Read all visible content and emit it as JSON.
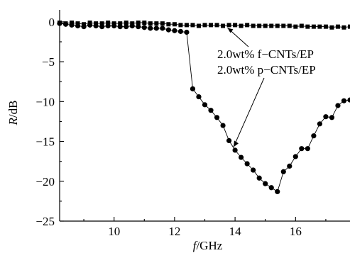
{
  "chart_data": {
    "type": "line",
    "xlabel": {
      "var": "f",
      "unit": "/GHz"
    },
    "ylabel": {
      "var": "R",
      "unit": "/dB"
    },
    "xlim": [
      8.2,
      17.8
    ],
    "ylim": [
      -25,
      1.5
    ],
    "xticks": [
      10,
      12,
      14,
      16
    ],
    "xtick_labels": [
      "10",
      "12",
      "14",
      "16"
    ],
    "yticks": [
      0,
      -5,
      -10,
      -15,
      -20,
      -25
    ],
    "ytick_labels": [
      "0",
      "−5",
      "−10",
      "−15",
      "−20",
      "−25"
    ],
    "grid": false,
    "legend": [
      {
        "label": "2.0wt% f−CNTs/EP",
        "marker": "square"
      },
      {
        "label": "2.0wt% p−CNTs/EP",
        "marker": "circle"
      }
    ],
    "series": [
      {
        "name": "2.0wt% f−CNTs/EP",
        "marker": "square",
        "x": [
          8.2,
          8.4,
          8.6,
          8.8,
          9.0,
          9.2,
          9.4,
          9.6,
          9.8,
          10.0,
          10.2,
          10.4,
          10.6,
          10.8,
          11.0,
          11.2,
          11.4,
          11.6,
          11.8,
          12.0,
          12.2,
          12.4,
          12.6,
          12.8,
          13.0,
          13.2,
          13.4,
          13.6,
          13.8,
          14.0,
          14.2,
          14.4,
          14.6,
          14.8,
          15.0,
          15.2,
          15.4,
          15.6,
          15.8,
          16.0,
          16.2,
          16.4,
          16.6,
          16.8,
          17.0,
          17.2,
          17.4,
          17.6,
          17.8
        ],
        "values": [
          -0.1,
          -0.2,
          -0.1,
          -0.2,
          -0.3,
          -0.1,
          -0.2,
          -0.2,
          -0.1,
          -0.2,
          -0.2,
          -0.1,
          -0.2,
          -0.1,
          -0.1,
          -0.2,
          -0.2,
          -0.2,
          -0.3,
          -0.3,
          -0.4,
          -0.4,
          -0.4,
          -0.5,
          -0.4,
          -0.4,
          -0.4,
          -0.5,
          -0.4,
          -0.4,
          -0.5,
          -0.4,
          -0.5,
          -0.5,
          -0.5,
          -0.5,
          -0.5,
          -0.5,
          -0.5,
          -0.6,
          -0.5,
          -0.6,
          -0.6,
          -0.6,
          -0.6,
          -0.7,
          -0.6,
          -0.7,
          -0.6
        ]
      },
      {
        "name": "2.0wt% p−CNTs/EP",
        "marker": "circle",
        "x": [
          8.2,
          8.4,
          8.6,
          8.8,
          9.0,
          9.2,
          9.4,
          9.6,
          9.8,
          10.0,
          10.2,
          10.4,
          10.6,
          10.8,
          11.0,
          11.2,
          11.4,
          11.6,
          11.8,
          12.0,
          12.2,
          12.4,
          12.6,
          12.8,
          13.0,
          13.2,
          13.4,
          13.6,
          13.8,
          14.0,
          14.2,
          14.4,
          14.6,
          14.8,
          15.0,
          15.2,
          15.4,
          15.6,
          15.8,
          16.0,
          16.2,
          16.4,
          16.6,
          16.8,
          17.0,
          17.2,
          17.4,
          17.6,
          17.8
        ],
        "values": [
          -0.2,
          -0.3,
          -0.4,
          -0.5,
          -0.6,
          -0.4,
          -0.5,
          -0.6,
          -0.5,
          -0.5,
          -0.6,
          -0.6,
          -0.5,
          -0.6,
          -0.7,
          -0.8,
          -0.8,
          -0.8,
          -1.0,
          -1.1,
          -1.2,
          -1.3,
          -8.4,
          -9.4,
          -10.4,
          -11.1,
          -12.0,
          -13.0,
          -14.9,
          -16.1,
          -17.0,
          -17.8,
          -18.6,
          -19.6,
          -20.3,
          -20.8,
          -21.3,
          -18.8,
          -18.1,
          -16.9,
          -15.9,
          -15.9,
          -14.3,
          -12.8,
          -11.9,
          -12.0,
          -10.5,
          -9.9,
          -9.8
        ]
      }
    ]
  }
}
